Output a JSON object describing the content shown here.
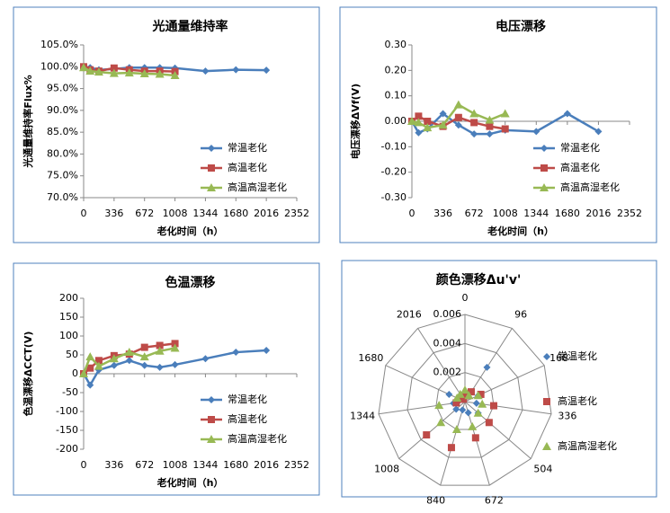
{
  "chart_data": [
    {
      "type": "line",
      "title": "光通量维持率",
      "xlabel": "老化时间（h）",
      "ylabel": "光通量维持率Flux%",
      "x": [
        0,
        72,
        168,
        336,
        504,
        672,
        840,
        1008,
        1344,
        1680,
        2016
      ],
      "xlim": [
        0,
        2352
      ],
      "xticks": [
        0,
        336,
        672,
        1008,
        1344,
        1680,
        2016,
        2352
      ],
      "ylim": [
        70,
        105
      ],
      "yticks": [
        {
          "value": 70,
          "label": "70.0%"
        },
        {
          "value": 75,
          "label": "75.0%"
        },
        {
          "value": 80,
          "label": "80.0%"
        },
        {
          "value": 85,
          "label": "85.0%"
        },
        {
          "value": 90,
          "label": "90.0%"
        },
        {
          "value": 95,
          "label": "95.0%"
        },
        {
          "value": 100,
          "label": "100.0%"
        },
        {
          "value": 105,
          "label": "105.0%"
        }
      ],
      "grid": false,
      "legend": "right",
      "series": [
        {
          "name": "常温老化",
          "color": "#4a7ebb",
          "marker": "diamond",
          "values": [
            100,
            99.8,
            99.3,
            99.5,
            99.8,
            99.8,
            99.8,
            99.7,
            99.0,
            99.3,
            99.2
          ]
        },
        {
          "name": "高温老化",
          "color": "#be4b48",
          "marker": "square",
          "values": [
            100,
            99.3,
            99.0,
            99.7,
            99.3,
            99.0,
            99.0,
            98.9,
            null,
            null,
            null
          ]
        },
        {
          "name": "高温高湿老化",
          "color": "#98b954",
          "marker": "triangle",
          "values": [
            99.8,
            99.0,
            98.8,
            98.5,
            98.6,
            98.4,
            98.3,
            98.0,
            null,
            null,
            null
          ]
        }
      ]
    },
    {
      "type": "line",
      "title": "电压漂移",
      "xlabel": "老化时间（h）",
      "ylabel": "电压漂移ΔVf(V)",
      "x": [
        0,
        72,
        168,
        336,
        504,
        672,
        840,
        1008,
        1344,
        1680,
        2016
      ],
      "xlim": [
        0,
        2352
      ],
      "xticks": [
        0,
        336,
        672,
        1008,
        1344,
        1680,
        2016,
        2352
      ],
      "ylim": [
        -0.3,
        0.3
      ],
      "yticks": [
        {
          "value": -0.3,
          "label": "-0.30"
        },
        {
          "value": -0.2,
          "label": "-0.20"
        },
        {
          "value": -0.1,
          "label": "-0.10"
        },
        {
          "value": 0,
          "label": "0.00"
        },
        {
          "value": 0.1,
          "label": "0.10"
        },
        {
          "value": 0.2,
          "label": "0.20"
        },
        {
          "value": 0.3,
          "label": "0.30"
        }
      ],
      "grid": false,
      "legend": "right",
      "series": [
        {
          "name": "常温老化",
          "color": "#4a7ebb",
          "marker": "diamond",
          "values": [
            0,
            -0.045,
            -0.03,
            0.03,
            -0.015,
            -0.05,
            -0.05,
            -0.035,
            -0.04,
            0.03,
            -0.04
          ]
        },
        {
          "name": "高温老化",
          "color": "#be4b48",
          "marker": "square",
          "values": [
            0,
            0.02,
            0.0,
            -0.02,
            0.015,
            -0.005,
            -0.02,
            -0.03,
            null,
            null,
            null
          ]
        },
        {
          "name": "高温高湿老化",
          "color": "#98b954",
          "marker": "triangle",
          "values": [
            0,
            -0.005,
            -0.025,
            -0.015,
            0.065,
            0.03,
            0.005,
            0.03,
            null,
            null,
            null
          ]
        }
      ]
    },
    {
      "type": "line",
      "title": "色温漂移",
      "xlabel": "老化时间（h）",
      "ylabel": "色温漂移ΔCCT(V)",
      "x": [
        0,
        72,
        168,
        336,
        504,
        672,
        840,
        1008,
        1344,
        1680,
        2016
      ],
      "xlim": [
        0,
        2352
      ],
      "xticks": [
        0,
        336,
        672,
        1008,
        1344,
        1680,
        2016,
        2352
      ],
      "ylim": [
        -200,
        200
      ],
      "yticks": [
        -200,
        -150,
        -100,
        -50,
        0,
        50,
        100,
        150,
        200
      ],
      "grid": false,
      "legend": "right",
      "series": [
        {
          "name": "常温老化",
          "color": "#4a7ebb",
          "marker": "diamond",
          "values": [
            0,
            -30,
            10,
            22,
            35,
            22,
            17,
            24,
            40,
            57,
            62
          ]
        },
        {
          "name": "高温老化",
          "color": "#be4b48",
          "marker": "square",
          "values": [
            0,
            15,
            35,
            48,
            52,
            70,
            75,
            80,
            null,
            null,
            null
          ]
        },
        {
          "name": "高温高湿老化",
          "color": "#98b954",
          "marker": "triangle",
          "values": [
            0,
            45,
            20,
            40,
            57,
            45,
            60,
            68,
            null,
            null,
            null
          ]
        }
      ]
    },
    {
      "type": "radar",
      "title": "颜色漂移Δu'v'",
      "categories": [
        "0",
        "96",
        "168",
        "336",
        "504",
        "672",
        "840",
        "1008",
        "1344",
        "1680",
        "2016"
      ],
      "rlim": [
        0,
        0.006
      ],
      "rticks": [
        0,
        0.002,
        0.004,
        0.006
      ],
      "legend": "right",
      "series": [
        {
          "name": "常温老化",
          "color": "#4a7ebb",
          "marker": "diamond",
          "values": [
            0.0005,
            0.0028,
            0.001,
            0.0008,
            0.0012,
            0.0008,
            0.0006,
            0.0008,
            0.0008,
            0.0012,
            0.0004
          ]
        },
        {
          "name": "高温老化",
          "color": "#be4b48",
          "marker": "square",
          "values": [
            0.0004,
            0.0008,
            0.0012,
            0.002,
            0.0022,
            0.0026,
            0.0033,
            0.0035,
            0.0006,
            0.0004,
            0.0002
          ]
        },
        {
          "name": "高温高湿老化",
          "color": "#98b954",
          "marker": "triangle",
          "values": [
            0.0008,
            0.0005,
            0.001,
            0.0012,
            0.0012,
            0.0018,
            0.002,
            0.0022,
            0.0018,
            0.0006,
            0.0006
          ]
        }
      ]
    }
  ]
}
